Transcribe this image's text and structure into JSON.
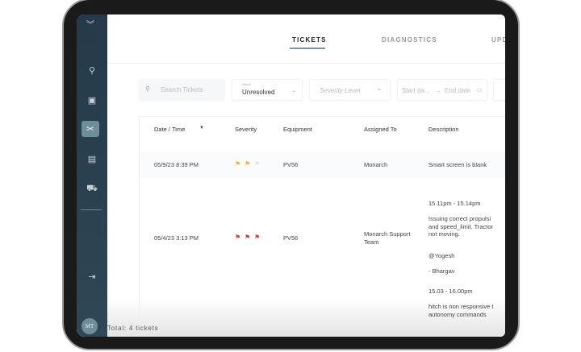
{
  "tabs": [
    {
      "label": "TICKETS",
      "active": true
    },
    {
      "label": "DIAGNOSTICS"
    },
    {
      "label": "UPD"
    }
  ],
  "filters": {
    "search_placeholder": "Search Tickets",
    "status_label": "status",
    "status_value": "Unresolved",
    "severity_placeholder": "Severity Level",
    "start_date": "Start da...",
    "arrow": "→",
    "end_date": "End date"
  },
  "table": {
    "headers": [
      "Date / Time",
      "Severity",
      "Equipment",
      "Assigned To",
      "Description"
    ],
    "rows": [
      {
        "date": "05/9/23 8:39 PM",
        "severity": 2,
        "severity_color": "#f2b233",
        "equipment": "PV56",
        "assigned": "Monarch",
        "description": [
          "Smart screen is blank"
        ]
      },
      {
        "date": "05/4/23 3:13 PM",
        "severity": 3,
        "severity_color": "#c0463a",
        "equipment": "PV56",
        "assigned": "Monarch Support Team",
        "description": [
          "15.11pm - 15.14pm",
          "Issuing correct propulsi",
          "and speed_limit. Tractor",
          "not moving.",
          "@Yogesh",
          "- Bhargav",
          "15.03  - 16.00pm",
          "hitch is non responsive t",
          "autonomy commands"
        ]
      }
    ]
  },
  "footer": {
    "total": "Total: 4 tickets"
  },
  "user": {
    "initials": "MT"
  },
  "colors": {
    "sidebar": "#2b4150",
    "accent": "#7a98a4"
  }
}
